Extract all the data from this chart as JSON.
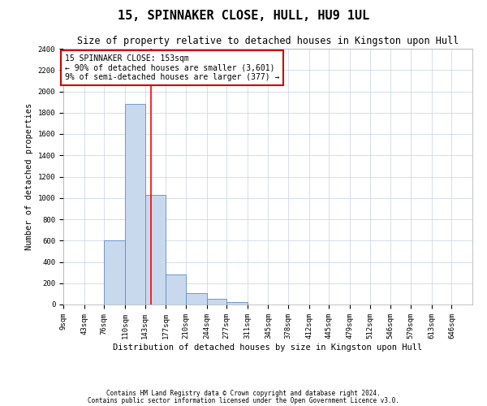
{
  "title": "15, SPINNAKER CLOSE, HULL, HU9 1UL",
  "subtitle": "Size of property relative to detached houses in Kingston upon Hull",
  "xlabel": "Distribution of detached houses by size in Kingston upon Hull",
  "ylabel": "Number of detached properties",
  "bins": [
    9,
    43,
    76,
    110,
    143,
    177,
    210,
    244,
    277,
    311,
    345,
    378,
    412,
    445,
    479,
    512,
    546,
    579,
    613,
    646,
    680
  ],
  "counts": [
    0,
    0,
    600,
    1880,
    1030,
    285,
    110,
    50,
    25,
    0,
    0,
    0,
    0,
    0,
    0,
    0,
    0,
    0,
    0,
    0
  ],
  "bar_color": "#c8d9ee",
  "bar_edge_color": "#5b8dc8",
  "red_line_x": 153,
  "ylim": [
    0,
    2400
  ],
  "annotation_text": "15 SPINNAKER CLOSE: 153sqm\n← 90% of detached houses are smaller (3,601)\n9% of semi-detached houses are larger (377) →",
  "annotation_box_color": "#ffffff",
  "annotation_box_edge": "#cc0000",
  "footer1": "Contains HM Land Registry data © Crown copyright and database right 2024.",
  "footer2": "Contains public sector information licensed under the Open Government Licence v3.0.",
  "bg_color": "#ffffff",
  "grid_color": "#d0d8e8",
  "title_fontsize": 11,
  "subtitle_fontsize": 8.5,
  "axis_label_fontsize": 7.5,
  "ylabel_fontsize": 7.5,
  "tick_fontsize": 6.5,
  "annotation_fontsize": 7,
  "footer_fontsize": 5.5
}
